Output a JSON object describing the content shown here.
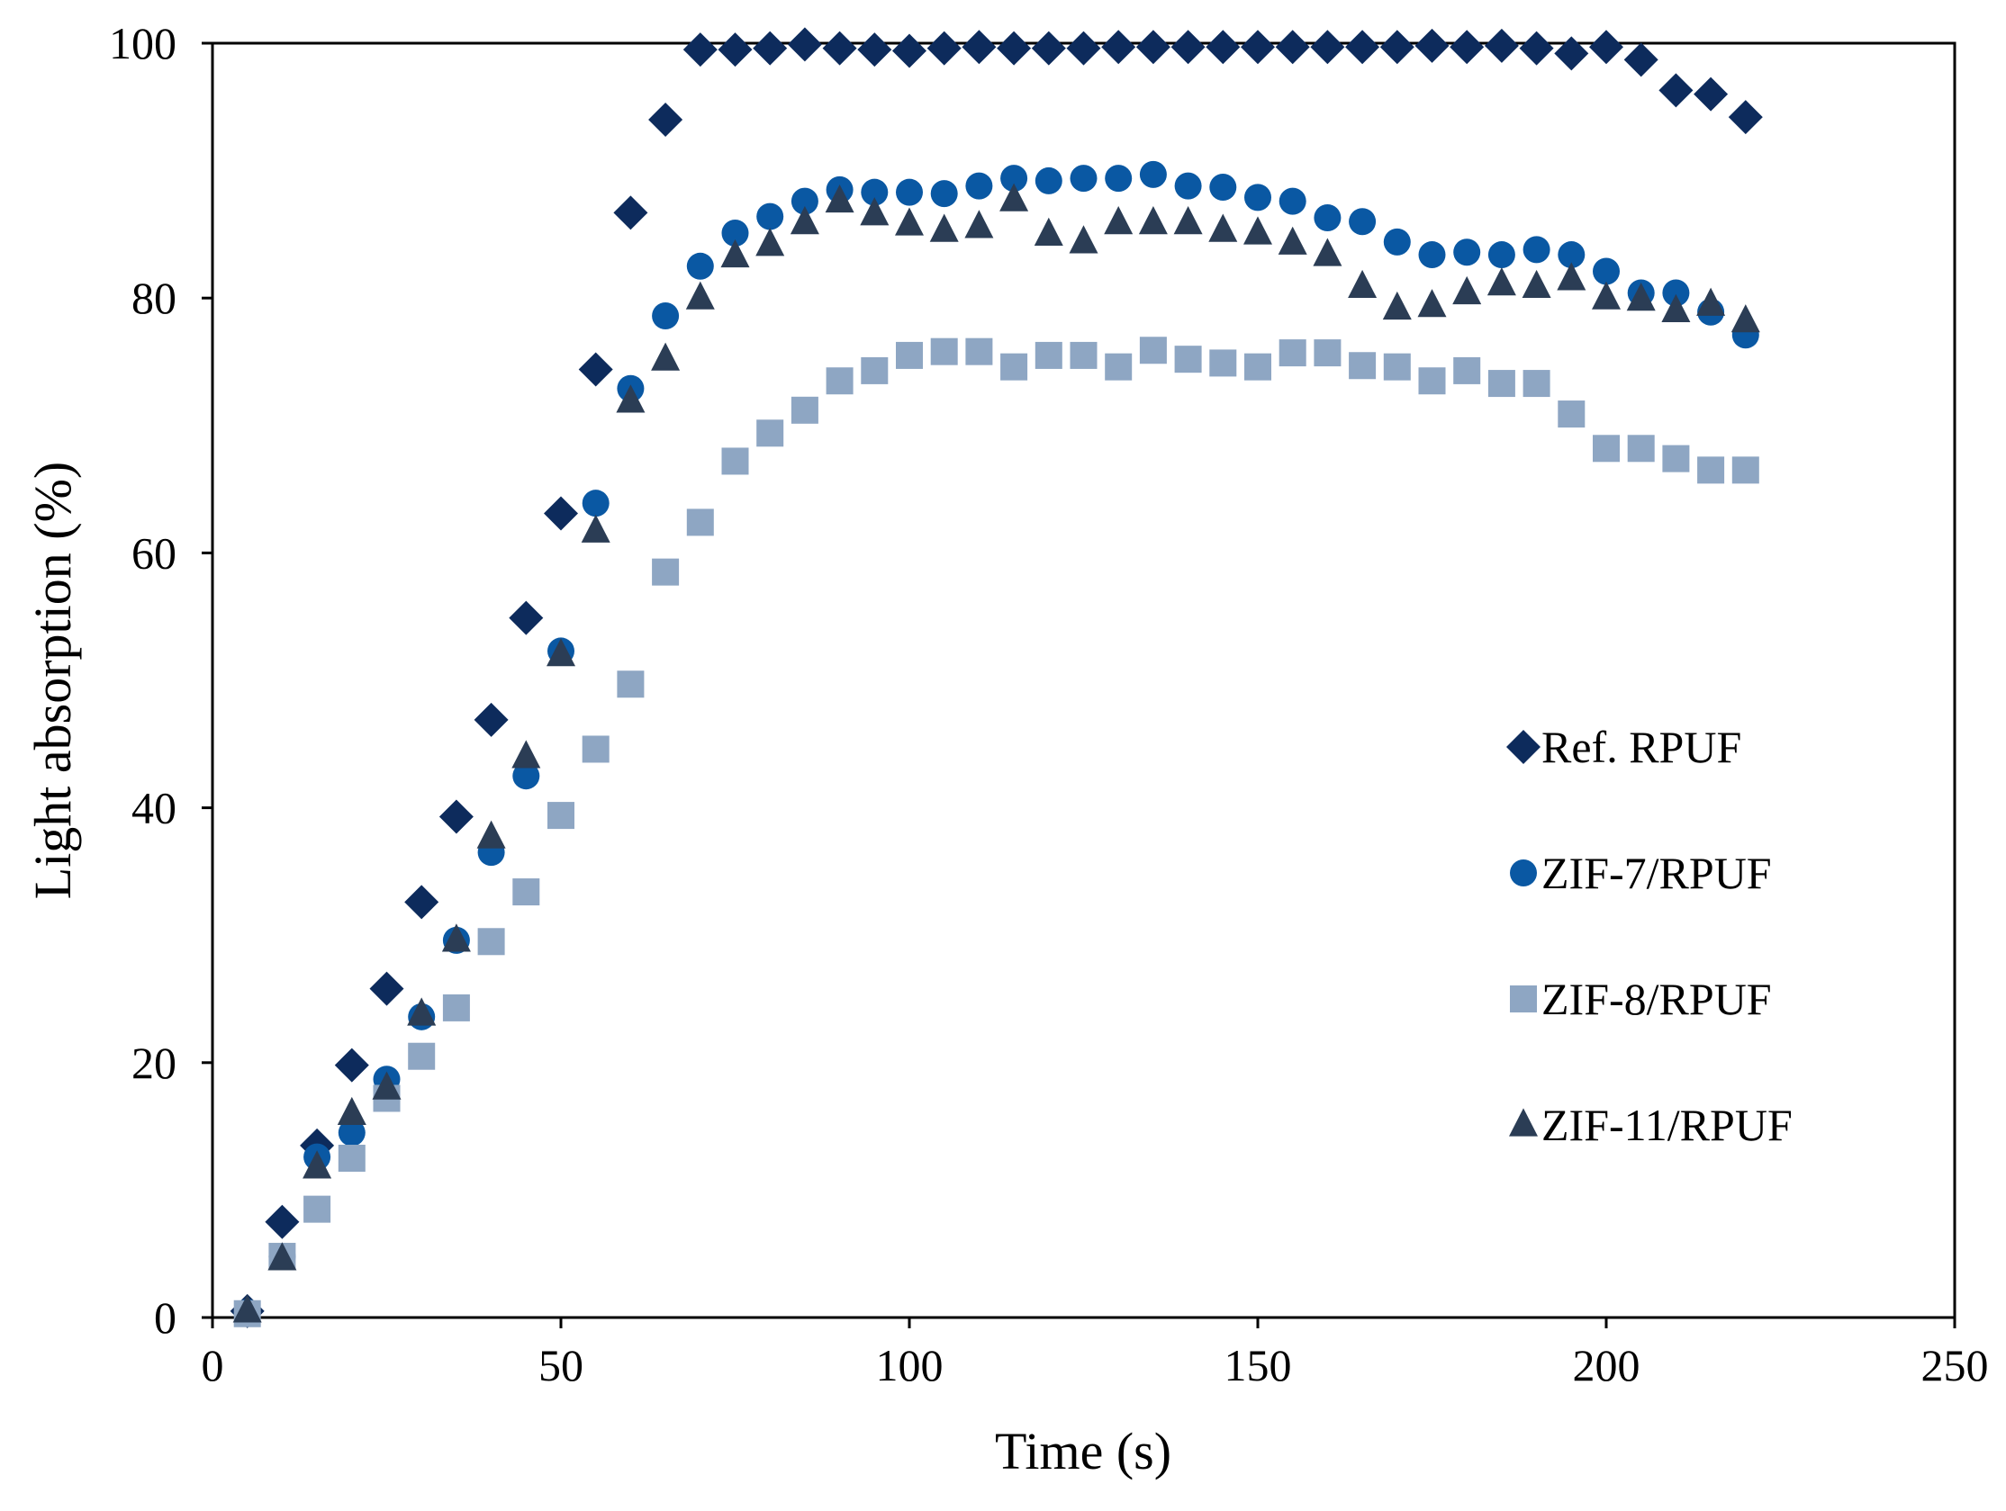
{
  "chart_data": {
    "type": "scatter",
    "title": "",
    "xlabel": "Time (s)",
    "ylabel": "Light absorption (%)",
    "xlim": [
      0,
      250
    ],
    "ylim": [
      0,
      100
    ],
    "xticks": [
      0,
      50,
      100,
      150,
      200,
      250
    ],
    "yticks": [
      0,
      20,
      40,
      60,
      80,
      100
    ],
    "grid": false,
    "legend_position": "center-right",
    "x": [
      5,
      10,
      15,
      20,
      25,
      30,
      35,
      40,
      45,
      50,
      55,
      60,
      65,
      70,
      75,
      80,
      85,
      90,
      95,
      100,
      105,
      110,
      115,
      120,
      125,
      130,
      135,
      140,
      145,
      150,
      155,
      160,
      165,
      170,
      175,
      180,
      185,
      190,
      195,
      200,
      205,
      210,
      215,
      220
    ],
    "series": [
      {
        "name": "Ref. RPUF",
        "marker": "diamond",
        "color": "#0d2b5c",
        "values": [
          0.5,
          7.5,
          13.5,
          19.8,
          25.8,
          32.6,
          39.3,
          46.9,
          54.9,
          63.1,
          74.4,
          86.7,
          94.0,
          99.5,
          99.5,
          99.6,
          99.9,
          99.6,
          99.5,
          99.4,
          99.6,
          99.7,
          99.6,
          99.6,
          99.6,
          99.7,
          99.7,
          99.7,
          99.7,
          99.7,
          99.7,
          99.7,
          99.7,
          99.7,
          99.8,
          99.7,
          99.8,
          99.6,
          99.2,
          99.7,
          98.7,
          96.3,
          96.0,
          94.2
        ]
      },
      {
        "name": "ZIF-7/RPUF",
        "marker": "circle",
        "color": "#0a58a3",
        "values": [
          0.4,
          4.8,
          12.6,
          14.5,
          18.7,
          23.6,
          29.6,
          36.5,
          42.5,
          52.3,
          63.9,
          72.9,
          78.6,
          82.5,
          85.1,
          86.4,
          87.6,
          88.5,
          88.3,
          88.3,
          88.2,
          88.8,
          89.4,
          89.2,
          89.4,
          89.4,
          89.7,
          88.8,
          88.7,
          87.9,
          87.6,
          86.3,
          86.0,
          84.4,
          83.4,
          83.6,
          83.4,
          83.8,
          83.4,
          82.1,
          80.4,
          80.4,
          78.9,
          77.1
        ]
      },
      {
        "name": "ZIF-8/RPUF",
        "marker": "square",
        "color": "#8ea6c3",
        "values": [
          0.3,
          4.8,
          8.5,
          12.5,
          17.2,
          20.5,
          24.3,
          29.5,
          33.4,
          39.4,
          44.6,
          49.7,
          58.5,
          62.4,
          67.2,
          69.4,
          71.2,
          73.5,
          74.3,
          75.5,
          75.8,
          75.8,
          74.6,
          75.5,
          75.5,
          74.6,
          75.9,
          75.2,
          74.9,
          74.6,
          75.7,
          75.7,
          74.7,
          74.6,
          73.5,
          74.3,
          73.3,
          73.3,
          70.9,
          68.2,
          68.2,
          67.4,
          66.5,
          66.5
        ]
      },
      {
        "name": "ZIF-11/RPUF",
        "marker": "triangle",
        "color": "#2b3d55",
        "values": [
          0.5,
          4.6,
          11.8,
          16.0,
          18.0,
          23.8,
          29.6,
          37.7,
          44.0,
          52.0,
          61.7,
          71.9,
          75.2,
          80.0,
          83.3,
          84.2,
          85.9,
          87.6,
          86.6,
          85.8,
          85.3,
          85.6,
          87.7,
          85.0,
          84.4,
          85.9,
          85.9,
          85.9,
          85.3,
          85.1,
          84.3,
          83.4,
          80.9,
          79.2,
          79.4,
          80.4,
          81.1,
          80.9,
          81.5,
          80.0,
          79.9,
          79.0,
          79.5,
          78.2
        ]
      }
    ]
  }
}
